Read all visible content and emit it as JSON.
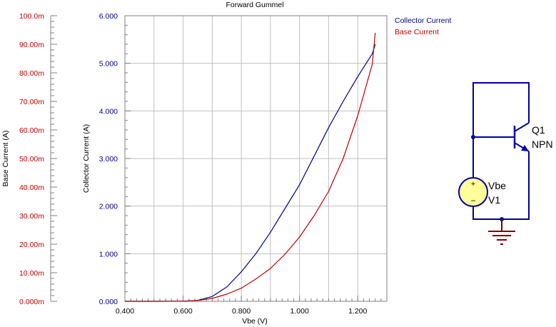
{
  "chart_data": {
    "type": "line",
    "title": "Forward Gummel",
    "xlabel": "Vbe (V)",
    "xlim": [
      0.4,
      1.3
    ],
    "x_ticks": [
      "0.400",
      "0.600",
      "0.800",
      "1.000",
      "1.200"
    ],
    "x_tick_values": [
      0.4,
      0.6,
      0.8,
      1.0,
      1.2
    ],
    "y_left": {
      "label": "Base Current (A)",
      "unit_scale": 0.001,
      "lim": [
        0,
        100
      ],
      "ticks": [
        "0.000m",
        "10.00m",
        "20.00m",
        "30.00m",
        "40.00m",
        "50.00m",
        "60.00m",
        "70.00m",
        "80.00m",
        "90.00m",
        "100.0m"
      ],
      "color": "#c00000"
    },
    "y_right": {
      "label": "Collector Current (A)",
      "lim": [
        0,
        6
      ],
      "ticks": [
        "0.000",
        "1.000",
        "2.000",
        "3.000",
        "4.000",
        "5.000",
        "6.000"
      ],
      "color": "#00008b"
    },
    "grid": true,
    "legend": [
      "Collector Current",
      "Base Current"
    ],
    "legend_placement": "top-right",
    "series": [
      {
        "name": "Collector Current",
        "axis": "collector",
        "color": "#00008b",
        "x": [
          0.4,
          0.5,
          0.6,
          0.65,
          0.7,
          0.75,
          0.8,
          0.85,
          0.9,
          0.95,
          1.0,
          1.05,
          1.1,
          1.15,
          1.2,
          1.25,
          1.26
        ],
        "y": [
          0.0,
          0.0,
          0.003,
          0.02,
          0.1,
          0.3,
          0.62,
          1.0,
          1.45,
          1.95,
          2.45,
          3.05,
          3.65,
          4.2,
          4.72,
          5.2,
          5.4
        ]
      },
      {
        "name": "Base Current",
        "axis": "base",
        "color": "#c00000",
        "x": [
          0.4,
          0.5,
          0.6,
          0.65,
          0.7,
          0.75,
          0.8,
          0.85,
          0.9,
          0.95,
          1.0,
          1.05,
          1.1,
          1.15,
          1.2,
          1.25,
          1.26
        ],
        "y": [
          0.0,
          0.0,
          0.05,
          0.3,
          1.0,
          2.5,
          4.6,
          7.8,
          11.5,
          16.5,
          22.5,
          30.0,
          38.5,
          50.0,
          65.0,
          83.0,
          94.0
        ]
      }
    ]
  },
  "schematic": {
    "transistor_name": "Q1",
    "transistor_type": "NPN",
    "source_name": "Vbe",
    "source_ref": "V1",
    "plus": "+",
    "minus": "−"
  }
}
